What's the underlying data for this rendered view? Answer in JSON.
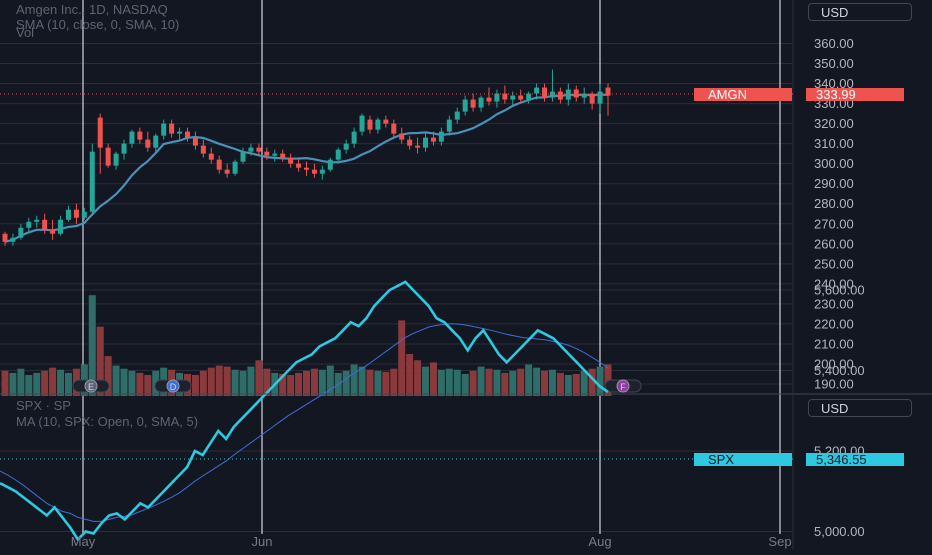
{
  "header": {
    "main_title": "Amgen Inc., 1D, NASDAQ",
    "indicator_sma": "SMA (10, close, 0, SMA, 10)",
    "indicator_vol": "Vol",
    "lower_title": "SPX · SP",
    "lower_indicator": "MA (10, SPX: Open, 0, SMA, 5)"
  },
  "currency": {
    "upper": "USD",
    "lower": "USD"
  },
  "price_tags": {
    "amgn_symbol": "AMGN",
    "amgn_value": "333.99",
    "spx_symbol": "SPX",
    "spx_value": "5,346.55"
  },
  "colors": {
    "up": "#26a69a",
    "down": "#ef5350",
    "sma": "#4a90b8",
    "spx": "#2ec9e0",
    "spx_ma": "#3d6fd6",
    "bg": "#131722",
    "grid": "#2a2e39"
  },
  "events": [
    {
      "label": "E",
      "x_label": "earnings",
      "color": "#5b6478"
    },
    {
      "label": "D",
      "x_label": "dividend",
      "color": "#3d6fd6"
    },
    {
      "label": "F",
      "x_label": "future-earnings",
      "color": "#8e3c9e"
    }
  ],
  "chart_data": [
    {
      "type": "candlestick",
      "title": "Amgen Inc., 1D, NASDAQ",
      "ylim": [
        185,
        375
      ],
      "y_ticks": [
        "360.00",
        "350.00",
        "340.00",
        "330.00",
        "320.00",
        "310.00",
        "300.00",
        "290.00",
        "280.00",
        "270.00",
        "260.00",
        "250.00",
        "240.00",
        "230.00",
        "220.00",
        "210.00",
        "200.00",
        "190.00"
      ],
      "x_ticks": [
        "May",
        "Jun",
        "Aug",
        "Sep"
      ],
      "last_price": 333.99,
      "candles": [
        [
          265,
          266,
          259,
          261
        ],
        [
          261,
          265,
          259,
          263
        ],
        [
          263,
          270,
          262,
          268
        ],
        [
          268,
          273,
          266,
          271
        ],
        [
          271,
          274,
          268,
          272
        ],
        [
          272,
          275,
          265,
          267
        ],
        [
          267,
          272,
          262,
          265
        ],
        [
          265,
          274,
          264,
          272
        ],
        [
          272,
          279,
          271,
          277
        ],
        [
          277,
          280,
          270,
          273
        ],
        [
          273,
          278,
          272,
          276
        ],
        [
          276,
          310,
          274,
          306
        ],
        [
          323,
          325,
          295,
          308
        ],
        [
          308,
          310,
          298,
          299
        ],
        [
          299,
          306,
          297,
          305
        ],
        [
          305,
          312,
          302,
          310
        ],
        [
          310,
          317,
          308,
          316
        ],
        [
          316,
          318,
          310,
          312
        ],
        [
          312,
          316,
          306,
          308
        ],
        [
          308,
          315,
          306,
          314
        ],
        [
          314,
          322,
          312,
          320
        ],
        [
          320,
          322,
          313,
          315
        ],
        [
          315,
          318,
          312,
          316
        ],
        [
          316,
          318,
          311,
          313
        ],
        [
          313,
          316,
          307,
          309
        ],
        [
          309,
          312,
          303,
          305
        ],
        [
          305,
          308,
          300,
          302
        ],
        [
          302,
          304,
          295,
          297
        ],
        [
          297,
          300,
          293,
          295
        ],
        [
          295,
          302,
          294,
          301
        ],
        [
          301,
          308,
          300,
          306
        ],
        [
          306,
          310,
          304,
          308
        ],
        [
          308,
          310,
          304,
          306
        ],
        [
          306,
          308,
          302,
          304
        ],
        [
          304,
          307,
          301,
          305
        ],
        [
          305,
          307,
          301,
          303
        ],
        [
          303,
          305,
          298,
          300
        ],
        [
          300,
          302,
          296,
          298
        ],
        [
          298,
          301,
          294,
          297
        ],
        [
          297,
          300,
          293,
          295
        ],
        [
          295,
          299,
          292,
          297
        ],
        [
          297,
          303,
          296,
          302
        ],
        [
          302,
          308,
          300,
          307
        ],
        [
          307,
          312,
          305,
          310
        ],
        [
          310,
          318,
          308,
          316
        ],
        [
          316,
          325,
          314,
          324
        ],
        [
          322,
          324,
          315,
          317
        ],
        [
          317,
          323,
          315,
          322
        ],
        [
          322,
          324,
          318,
          320
        ],
        [
          320,
          322,
          313,
          315
        ],
        [
          315,
          318,
          310,
          312
        ],
        [
          312,
          314,
          307,
          309
        ],
        [
          309,
          313,
          305,
          308
        ],
        [
          308,
          315,
          306,
          313
        ],
        [
          313,
          316,
          309,
          311
        ],
        [
          311,
          318,
          309,
          316
        ],
        [
          316,
          324,
          314,
          322
        ],
        [
          322,
          328,
          320,
          326
        ],
        [
          326,
          334,
          324,
          332
        ],
        [
          332,
          335,
          326,
          328
        ],
        [
          328,
          334,
          326,
          333
        ],
        [
          333,
          338,
          329,
          331
        ],
        [
          331,
          337,
          328,
          335
        ],
        [
          335,
          339,
          330,
          332
        ],
        [
          332,
          336,
          329,
          334
        ],
        [
          334,
          337,
          330,
          332
        ],
        [
          332,
          336,
          330,
          335
        ],
        [
          335,
          340,
          332,
          338
        ],
        [
          338,
          340,
          331,
          333
        ],
        [
          333,
          347,
          331,
          336
        ],
        [
          336,
          338,
          330,
          332
        ],
        [
          332,
          340,
          329,
          337
        ],
        [
          337,
          339,
          331,
          333
        ],
        [
          333,
          338,
          330,
          335
        ],
        [
          335,
          336,
          327,
          330
        ],
        [
          330,
          340,
          325,
          336
        ],
        [
          338,
          340,
          324,
          333.99
        ]
      ]
    },
    {
      "type": "bar",
      "title": "Vol",
      "colors_by": "candle direction",
      "values": [
        24,
        22,
        26,
        20,
        22,
        24,
        27,
        25,
        22,
        26,
        30,
        96,
        66,
        38,
        29,
        26,
        24,
        22,
        20,
        24,
        27,
        25,
        22,
        21,
        20,
        24,
        27,
        29,
        28,
        25,
        24,
        28,
        34,
        26,
        22,
        21,
        20,
        22,
        24,
        26,
        25,
        29,
        22,
        24,
        30,
        28,
        25,
        24,
        23,
        26,
        72,
        40,
        34,
        28,
        32,
        25,
        26,
        25,
        21,
        24,
        28,
        26,
        25,
        22,
        24,
        26,
        30,
        27,
        24,
        25,
        22,
        20,
        21,
        24,
        26,
        28,
        30
      ]
    },
    {
      "type": "line",
      "title": "SPX · SP",
      "ylim": [
        4940,
        5700
      ],
      "y_ticks": [
        "5,600.00",
        "5,400.00",
        "5,200.00",
        "5,000.00"
      ],
      "last_value": 5346.55,
      "values": [
        5120,
        5110,
        5100,
        5085,
        5070,
        5055,
        5040,
        5060,
        5035,
        5010,
        4980,
        5000,
        4995,
        5020,
        5040,
        5045,
        5030,
        5050,
        5070,
        5060,
        5080,
        5100,
        5120,
        5140,
        5160,
        5200,
        5190,
        5220,
        5250,
        5230,
        5260,
        5280,
        5300,
        5320,
        5340,
        5360,
        5380,
        5400,
        5420,
        5430,
        5440,
        5460,
        5470,
        5480,
        5500,
        5520,
        5510,
        5530,
        5560,
        5580,
        5600,
        5610,
        5620,
        5600,
        5580,
        5560,
        5530,
        5520,
        5500,
        5480,
        5450,
        5480,
        5500,
        5470,
        5440,
        5420,
        5440,
        5460,
        5480,
        5500,
        5490,
        5480,
        5460,
        5440,
        5420,
        5400,
        5380,
        5360,
        5346.55
      ],
      "ma_values": [
        5150,
        5140,
        5128,
        5115,
        5100,
        5085,
        5070,
        5060,
        5050,
        5045,
        5035,
        5030,
        5025,
        5025,
        5030,
        5035,
        5038,
        5042,
        5050,
        5058,
        5066,
        5075,
        5085,
        5096,
        5110,
        5125,
        5138,
        5150,
        5163,
        5175,
        5190,
        5204,
        5218,
        5232,
        5246,
        5260,
        5274,
        5288,
        5300,
        5312,
        5324,
        5336,
        5348,
        5360,
        5374,
        5388,
        5400,
        5412,
        5426,
        5440,
        5454,
        5468,
        5482,
        5492,
        5500,
        5508,
        5512,
        5515,
        5516,
        5515,
        5512,
        5508,
        5504,
        5500,
        5495,
        5490,
        5486,
        5482,
        5480,
        5478,
        5476,
        5472,
        5468,
        5462,
        5454,
        5444,
        5432,
        5420,
        5406
      ]
    }
  ]
}
